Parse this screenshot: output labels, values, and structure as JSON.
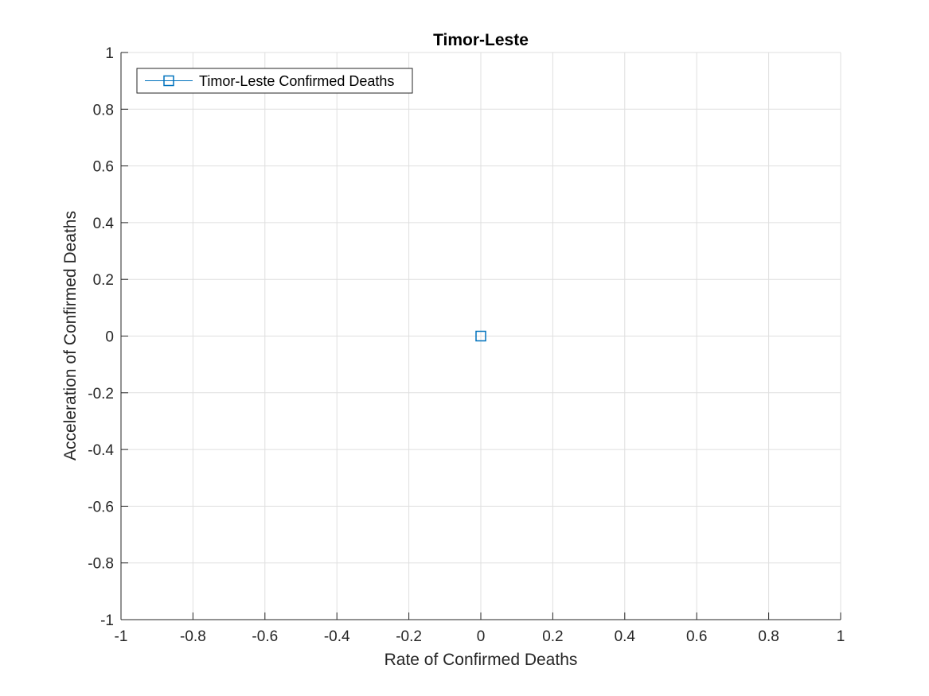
{
  "chart_data": {
    "type": "line",
    "title": "Timor-Leste",
    "xlabel": "Rate of Confirmed Deaths",
    "ylabel": "Acceleration of Confirmed Deaths",
    "xlim": [
      -1,
      1
    ],
    "ylim": [
      -1,
      1
    ],
    "xticks": [
      -1,
      -0.8,
      -0.6,
      -0.4,
      -0.2,
      0,
      0.2,
      0.4,
      0.6,
      0.8,
      1
    ],
    "yticks": [
      -1,
      -0.8,
      -0.6,
      -0.4,
      -0.2,
      0,
      0.2,
      0.4,
      0.6,
      0.8,
      1
    ],
    "xtick_labels": [
      "-1",
      "-0.8",
      "-0.6",
      "-0.4",
      "-0.2",
      "0",
      "0.2",
      "0.4",
      "0.6",
      "0.8",
      "1"
    ],
    "ytick_labels": [
      "-1",
      "-0.8",
      "-0.6",
      "-0.4",
      "-0.2",
      "0",
      "0.2",
      "0.4",
      "0.6",
      "0.8",
      "1"
    ],
    "grid": true,
    "legend_position": "top-left",
    "series": [
      {
        "name": "Timor-Leste Confirmed Deaths",
        "marker": "square",
        "color": "#0072BD",
        "x": [
          0
        ],
        "y": [
          0
        ]
      }
    ]
  }
}
